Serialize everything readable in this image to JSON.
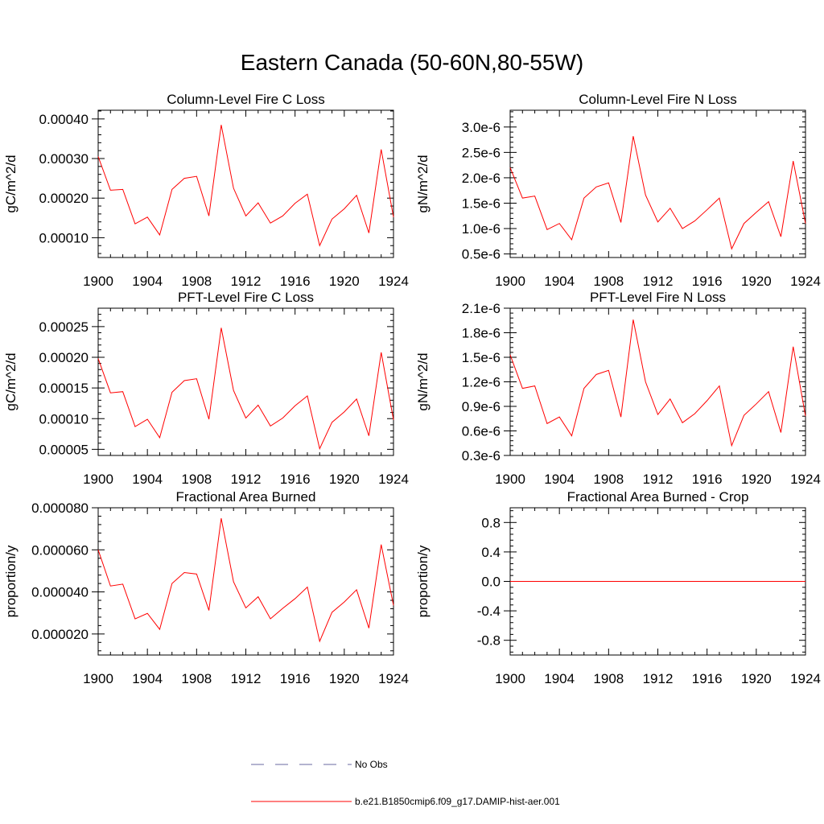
{
  "page": {
    "title": "Eastern Canada (50-60N,80-55W)"
  },
  "legend": {
    "entries": [
      {
        "label": "No Obs",
        "color": "#6a6aa0",
        "style": "dashed"
      },
      {
        "label": "b.e21.B1850cmip6.f09_g17.DAMIP-hist-aer.001",
        "color": "#ff0000",
        "style": "solid"
      }
    ]
  },
  "chart_data": [
    {
      "type": "line",
      "title": "Column-Level Fire C Loss",
      "ylabel": "gC/m^2/d",
      "xlim": [
        1900,
        1924
      ],
      "ylim": [
        5e-05,
        0.000422
      ],
      "xticks": [
        1900,
        1904,
        1908,
        1912,
        1916,
        1920,
        1924
      ],
      "yticks": [
        0.0001,
        0.0002,
        0.0003,
        0.0004
      ],
      "ytick_labels": [
        "0.00010",
        "0.00020",
        "0.00030",
        "0.00040"
      ],
      "x": [
        1900,
        1901,
        1902,
        1903,
        1904,
        1905,
        1906,
        1907,
        1908,
        1909,
        1910,
        1911,
        1912,
        1913,
        1914,
        1915,
        1916,
        1917,
        1918,
        1919,
        1920,
        1921,
        1922,
        1923,
        1924
      ],
      "series": [
        {
          "color": "#ff0000",
          "values": [
            0.000305,
            0.00022,
            0.000222,
            0.000135,
            0.000152,
            0.000107,
            0.000222,
            0.00025,
            0.000255,
            0.000155,
            0.000385,
            0.000225,
            0.000155,
            0.000188,
            0.000137,
            0.000155,
            0.000187,
            0.00021,
            8e-05,
            0.000147,
            0.000173,
            0.000207,
            0.000112,
            0.000323,
            0.000152
          ]
        }
      ]
    },
    {
      "type": "line",
      "title": "Column-Level Fire N Loss",
      "ylabel": "gN/m^2/d",
      "xlim": [
        1900,
        1924
      ],
      "ylim": [
        4.3e-07,
        3.33e-06
      ],
      "xticks": [
        1900,
        1904,
        1908,
        1912,
        1916,
        1920,
        1924
      ],
      "yticks": [
        5e-07,
        1e-06,
        1.5e-06,
        2e-06,
        2.5e-06,
        3e-06
      ],
      "ytick_labels": [
        "0.5e-6",
        "1.0e-6",
        "1.5e-6",
        "2.0e-6",
        "2.5e-6",
        "3.0e-6"
      ],
      "x": [
        1900,
        1901,
        1902,
        1903,
        1904,
        1905,
        1906,
        1907,
        1908,
        1909,
        1910,
        1911,
        1912,
        1913,
        1914,
        1915,
        1916,
        1917,
        1918,
        1919,
        1920,
        1921,
        1922,
        1923,
        1924
      ],
      "series": [
        {
          "color": "#ff0000",
          "values": [
            2.2e-06,
            1.6e-06,
            1.64e-06,
            9.8e-07,
            1.1e-06,
            7.8e-07,
            1.6e-06,
            1.82e-06,
            1.9e-06,
            1.12e-06,
            2.82e-06,
            1.66e-06,
            1.13e-06,
            1.4e-06,
            1e-06,
            1.15e-06,
            1.37e-06,
            1.6e-06,
            6e-07,
            1.1e-06,
            1.32e-06,
            1.53e-06,
            8.4e-07,
            2.33e-06,
            1.1e-06
          ]
        }
      ]
    },
    {
      "type": "line",
      "title": "PFT-Level Fire C Loss",
      "ylabel": "gC/m^2/d",
      "xlim": [
        1900,
        1924
      ],
      "ylim": [
        4e-05,
        0.00028
      ],
      "xticks": [
        1900,
        1904,
        1908,
        1912,
        1916,
        1920,
        1924
      ],
      "yticks": [
        5e-05,
        0.0001,
        0.00015,
        0.0002,
        0.00025
      ],
      "ytick_labels": [
        "0.00005",
        "0.00010",
        "0.00015",
        "0.00020",
        "0.00025"
      ],
      "x": [
        1900,
        1901,
        1902,
        1903,
        1904,
        1905,
        1906,
        1907,
        1908,
        1909,
        1910,
        1911,
        1912,
        1913,
        1914,
        1915,
        1916,
        1917,
        1918,
        1919,
        1920,
        1921,
        1922,
        1923,
        1924
      ],
      "series": [
        {
          "color": "#ff0000",
          "values": [
            0.000198,
            0.000142,
            0.000144,
            8.7e-05,
            9.9e-05,
            6.9e-05,
            0.000143,
            0.000162,
            0.000165,
            9.9e-05,
            0.000248,
            0.000146,
            0.000101,
            0.000122,
            8.8e-05,
            0.000101,
            0.000121,
            0.000137,
            5.1e-05,
            9.4e-05,
            0.000111,
            0.000132,
            7.2e-05,
            0.000208,
            9.8e-05
          ]
        }
      ]
    },
    {
      "type": "line",
      "title": "PFT-Level Fire N Loss",
      "ylabel": "gN/m^2/d",
      "xlim": [
        1900,
        1924
      ],
      "ylim": [
        3e-07,
        2.1e-06
      ],
      "xticks": [
        1900,
        1904,
        1908,
        1912,
        1916,
        1920,
        1924
      ],
      "yticks": [
        3e-07,
        6e-07,
        9e-07,
        1.2e-06,
        1.5e-06,
        1.8e-06,
        2.1e-06
      ],
      "ytick_labels": [
        "0.3e-6",
        "0.6e-6",
        "0.9e-6",
        "1.2e-6",
        "1.5e-6",
        "1.8e-6",
        "2.1e-6"
      ],
      "x": [
        1900,
        1901,
        1902,
        1903,
        1904,
        1905,
        1906,
        1907,
        1908,
        1909,
        1910,
        1911,
        1912,
        1913,
        1914,
        1915,
        1916,
        1917,
        1918,
        1919,
        1920,
        1921,
        1922,
        1923,
        1924
      ],
      "series": [
        {
          "color": "#ff0000",
          "values": [
            1.53e-06,
            1.12e-06,
            1.15e-06,
            6.9e-07,
            7.7e-07,
            5.4e-07,
            1.12e-06,
            1.29e-06,
            1.34e-06,
            7.7e-07,
            1.96e-06,
            1.2e-06,
            8e-07,
            9.9e-07,
            7e-07,
            8.1e-07,
            9.7e-07,
            1.15e-06,
            4.2e-07,
            7.9e-07,
            9.3e-07,
            1.08e-06,
            5.8e-07,
            1.63e-06,
            7.8e-07
          ]
        }
      ]
    },
    {
      "type": "line",
      "title": "Fractional Area Burned",
      "ylabel": "proportion/y",
      "xlim": [
        1900,
        1924
      ],
      "ylim": [
        1e-05,
        8e-05
      ],
      "xticks": [
        1900,
        1904,
        1908,
        1912,
        1916,
        1920,
        1924
      ],
      "yticks": [
        2e-05,
        4e-05,
        6e-05,
        8e-05
      ],
      "ytick_labels": [
        "0.000020",
        "0.000040",
        "0.000060",
        "0.000080"
      ],
      "x": [
        1900,
        1901,
        1902,
        1903,
        1904,
        1905,
        1906,
        1907,
        1908,
        1909,
        1910,
        1911,
        1912,
        1913,
        1914,
        1915,
        1916,
        1917,
        1918,
        1919,
        1920,
        1921,
        1922,
        1923,
        1924
      ],
      "series": [
        {
          "color": "#ff0000",
          "values": [
            6e-05,
            4.28e-05,
            4.37e-05,
            2.72e-05,
            2.98e-05,
            2.22e-05,
            4.4e-05,
            4.92e-05,
            4.85e-05,
            3.12e-05,
            7.5e-05,
            4.48e-05,
            3.24e-05,
            3.77e-05,
            2.72e-05,
            3.22e-05,
            3.68e-05,
            4.23e-05,
            1.65e-05,
            3.03e-05,
            3.52e-05,
            4.1e-05,
            2.28e-05,
            6.25e-05,
            3.36e-05
          ]
        }
      ]
    },
    {
      "type": "line",
      "title": "Fractional Area Burned - Crop",
      "ylabel": "proportion/y",
      "xlim": [
        1900,
        1924
      ],
      "ylim": [
        -1.0,
        1.0
      ],
      "xticks": [
        1900,
        1904,
        1908,
        1912,
        1916,
        1920,
        1924
      ],
      "yticks": [
        -0.8,
        -0.4,
        0.0,
        0.4,
        0.8
      ],
      "ytick_labels": [
        "-0.8",
        "-0.4",
        "0.0",
        "0.4",
        "0.8"
      ],
      "x": [
        1900,
        1924
      ],
      "series": [
        {
          "color": "#ff0000",
          "values": [
            0.0,
            0.0
          ]
        }
      ]
    }
  ]
}
